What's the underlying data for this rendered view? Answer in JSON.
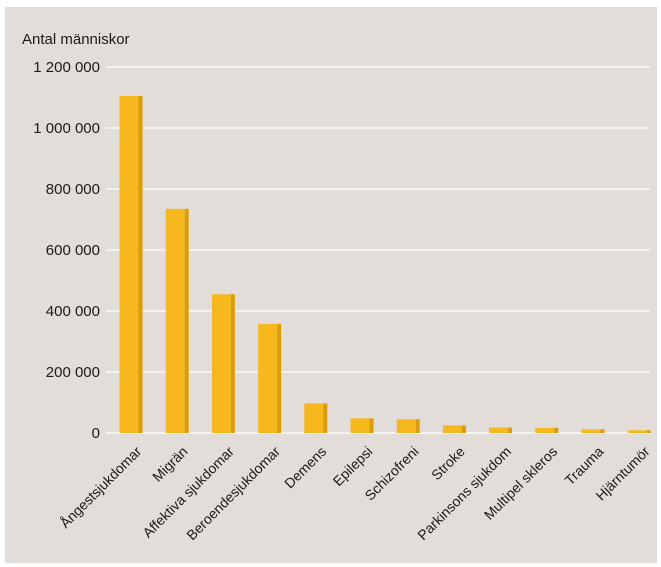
{
  "chart_data": {
    "type": "bar",
    "title": "",
    "xlabel": "",
    "ylabel": "Antal människor",
    "ylim": [
      0,
      1200000
    ],
    "yticks": [
      0,
      200000,
      400000,
      600000,
      800000,
      1000000,
      1200000
    ],
    "ytick_labels": [
      "0",
      "200 000",
      "400 000",
      "600 000",
      "800 000",
      "1 000 000",
      "1 200 000"
    ],
    "grid": "horizontal",
    "categories": [
      "Ångestsjukdomar",
      "Migrän",
      "Affektiva sjukdomar",
      "Beroendesjukdomar",
      "Demens",
      "Epilepsi",
      "Schizofreni",
      "Stroke",
      "Parkinsons sjukdom",
      "Multipel skleros",
      "Trauma",
      "Hjärntumör"
    ],
    "values": [
      1105000,
      735000,
      455000,
      358000,
      97000,
      48000,
      45000,
      25000,
      18000,
      17000,
      12000,
      9000
    ],
    "colors": {
      "background": "#e2ddd9",
      "bar": "#f6b81c",
      "bar_shade": "#d89c10",
      "grid": "#ffffff"
    }
  }
}
